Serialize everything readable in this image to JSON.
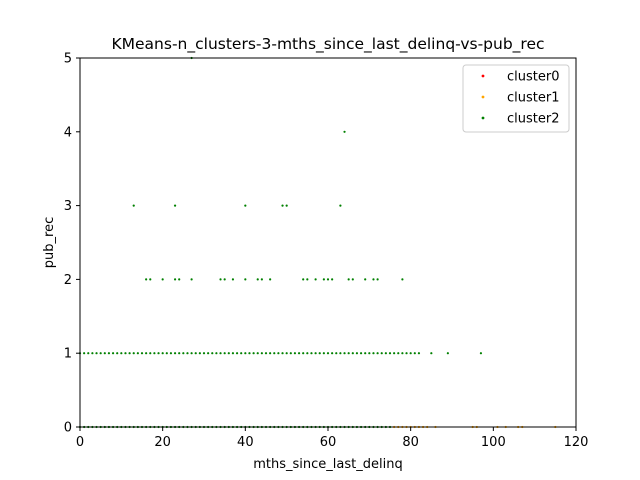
{
  "chart_data": {
    "type": "scatter",
    "title": "KMeans-n_clusters-3-mths_since_last_delinq-vs-pub_rec",
    "xlabel": "mths_since_last_delinq",
    "ylabel": "pub_rec",
    "xlim": [
      0,
      120
    ],
    "ylim": [
      0,
      5
    ],
    "xticks": [
      "0",
      "20",
      "40",
      "60",
      "80",
      "100",
      "120"
    ],
    "yticks": [
      "0",
      "1",
      "2",
      "3",
      "4",
      "5"
    ],
    "grid": false,
    "legend_position": "top-right",
    "series": [
      {
        "name": "cluster0",
        "color": "#ff0000",
        "points": []
      },
      {
        "name": "cluster1",
        "color": "#ffa500",
        "points": [
          [
            76,
            0
          ],
          [
            77,
            0
          ],
          [
            78,
            0
          ],
          [
            79,
            0
          ],
          [
            80,
            0
          ],
          [
            81,
            0
          ],
          [
            82,
            0
          ],
          [
            83,
            0
          ],
          [
            84,
            0
          ],
          [
            86,
            0
          ],
          [
            95,
            0
          ],
          [
            96,
            0
          ],
          [
            101,
            0
          ],
          [
            103,
            0
          ],
          [
            106,
            0
          ],
          [
            107,
            0
          ],
          [
            115,
            0
          ]
        ]
      },
      {
        "name": "cluster2",
        "color": "#008000",
        "points": [
          [
            0,
            0
          ],
          [
            1,
            0
          ],
          [
            2,
            0
          ],
          [
            3,
            0
          ],
          [
            4,
            0
          ],
          [
            5,
            0
          ],
          [
            6,
            0
          ],
          [
            7,
            0
          ],
          [
            8,
            0
          ],
          [
            9,
            0
          ],
          [
            10,
            0
          ],
          [
            11,
            0
          ],
          [
            12,
            0
          ],
          [
            13,
            0
          ],
          [
            14,
            0
          ],
          [
            15,
            0
          ],
          [
            16,
            0
          ],
          [
            17,
            0
          ],
          [
            18,
            0
          ],
          [
            19,
            0
          ],
          [
            20,
            0
          ],
          [
            21,
            0
          ],
          [
            22,
            0
          ],
          [
            23,
            0
          ],
          [
            24,
            0
          ],
          [
            25,
            0
          ],
          [
            26,
            0
          ],
          [
            27,
            0
          ],
          [
            28,
            0
          ],
          [
            29,
            0
          ],
          [
            30,
            0
          ],
          [
            31,
            0
          ],
          [
            32,
            0
          ],
          [
            33,
            0
          ],
          [
            34,
            0
          ],
          [
            35,
            0
          ],
          [
            36,
            0
          ],
          [
            37,
            0
          ],
          [
            38,
            0
          ],
          [
            39,
            0
          ],
          [
            40,
            0
          ],
          [
            41,
            0
          ],
          [
            42,
            0
          ],
          [
            43,
            0
          ],
          [
            44,
            0
          ],
          [
            45,
            0
          ],
          [
            46,
            0
          ],
          [
            47,
            0
          ],
          [
            48,
            0
          ],
          [
            49,
            0
          ],
          [
            50,
            0
          ],
          [
            51,
            0
          ],
          [
            52,
            0
          ],
          [
            53,
            0
          ],
          [
            54,
            0
          ],
          [
            55,
            0
          ],
          [
            56,
            0
          ],
          [
            57,
            0
          ],
          [
            58,
            0
          ],
          [
            59,
            0
          ],
          [
            60,
            0
          ],
          [
            61,
            0
          ],
          [
            62,
            0
          ],
          [
            63,
            0
          ],
          [
            64,
            0
          ],
          [
            65,
            0
          ],
          [
            66,
            0
          ],
          [
            67,
            0
          ],
          [
            68,
            0
          ],
          [
            69,
            0
          ],
          [
            70,
            0
          ],
          [
            71,
            0
          ],
          [
            72,
            0
          ],
          [
            73,
            0
          ],
          [
            74,
            0
          ],
          [
            75,
            0
          ],
          [
            0,
            1
          ],
          [
            1,
            1
          ],
          [
            2,
            1
          ],
          [
            3,
            1
          ],
          [
            4,
            1
          ],
          [
            5,
            1
          ],
          [
            6,
            1
          ],
          [
            7,
            1
          ],
          [
            8,
            1
          ],
          [
            9,
            1
          ],
          [
            10,
            1
          ],
          [
            11,
            1
          ],
          [
            12,
            1
          ],
          [
            13,
            1
          ],
          [
            14,
            1
          ],
          [
            15,
            1
          ],
          [
            16,
            1
          ],
          [
            17,
            1
          ],
          [
            18,
            1
          ],
          [
            19,
            1
          ],
          [
            20,
            1
          ],
          [
            21,
            1
          ],
          [
            22,
            1
          ],
          [
            23,
            1
          ],
          [
            24,
            1
          ],
          [
            25,
            1
          ],
          [
            26,
            1
          ],
          [
            27,
            1
          ],
          [
            28,
            1
          ],
          [
            29,
            1
          ],
          [
            30,
            1
          ],
          [
            31,
            1
          ],
          [
            32,
            1
          ],
          [
            33,
            1
          ],
          [
            34,
            1
          ],
          [
            35,
            1
          ],
          [
            36,
            1
          ],
          [
            37,
            1
          ],
          [
            38,
            1
          ],
          [
            39,
            1
          ],
          [
            40,
            1
          ],
          [
            41,
            1
          ],
          [
            42,
            1
          ],
          [
            43,
            1
          ],
          [
            44,
            1
          ],
          [
            45,
            1
          ],
          [
            46,
            1
          ],
          [
            47,
            1
          ],
          [
            48,
            1
          ],
          [
            49,
            1
          ],
          [
            50,
            1
          ],
          [
            51,
            1
          ],
          [
            52,
            1
          ],
          [
            53,
            1
          ],
          [
            54,
            1
          ],
          [
            55,
            1
          ],
          [
            56,
            1
          ],
          [
            57,
            1
          ],
          [
            58,
            1
          ],
          [
            59,
            1
          ],
          [
            60,
            1
          ],
          [
            61,
            1
          ],
          [
            62,
            1
          ],
          [
            63,
            1
          ],
          [
            64,
            1
          ],
          [
            65,
            1
          ],
          [
            66,
            1
          ],
          [
            67,
            1
          ],
          [
            68,
            1
          ],
          [
            69,
            1
          ],
          [
            70,
            1
          ],
          [
            71,
            1
          ],
          [
            72,
            1
          ],
          [
            73,
            1
          ],
          [
            74,
            1
          ],
          [
            75,
            1
          ],
          [
            76,
            1
          ],
          [
            77,
            1
          ],
          [
            78,
            1
          ],
          [
            79,
            1
          ],
          [
            80,
            1
          ],
          [
            81,
            1
          ],
          [
            82,
            1
          ],
          [
            85,
            1
          ],
          [
            89,
            1
          ],
          [
            97,
            1
          ],
          [
            16,
            2
          ],
          [
            17,
            2
          ],
          [
            20,
            2
          ],
          [
            23,
            2
          ],
          [
            24,
            2
          ],
          [
            27,
            2
          ],
          [
            34,
            2
          ],
          [
            35,
            2
          ],
          [
            37,
            2
          ],
          [
            40,
            2
          ],
          [
            43,
            2
          ],
          [
            44,
            2
          ],
          [
            46,
            2
          ],
          [
            54,
            2
          ],
          [
            55,
            2
          ],
          [
            57,
            2
          ],
          [
            59,
            2
          ],
          [
            60,
            2
          ],
          [
            61,
            2
          ],
          [
            65,
            2
          ],
          [
            66,
            2
          ],
          [
            69,
            2
          ],
          [
            71,
            2
          ],
          [
            72,
            2
          ],
          [
            78,
            2
          ],
          [
            13,
            3
          ],
          [
            23,
            3
          ],
          [
            40,
            3
          ],
          [
            49,
            3
          ],
          [
            50,
            3
          ],
          [
            63,
            3
          ],
          [
            64,
            4
          ],
          [
            27,
            5
          ]
        ]
      }
    ]
  }
}
